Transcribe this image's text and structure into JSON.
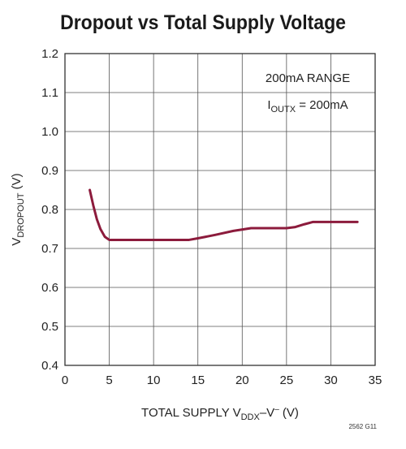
{
  "chart_data": {
    "type": "line",
    "title": "Dropout vs Total Supply Voltage",
    "xlabel": {
      "main": "TOTAL SUPPLY V",
      "sub": "DDX",
      "mid": "–V",
      "sup": "–",
      "end": " (V)"
    },
    "ylabel": {
      "main": "V",
      "sub": "DROPOUT",
      "end": " (V)"
    },
    "xlim": [
      0,
      35
    ],
    "ylim": [
      0.4,
      1.2
    ],
    "xticks": [
      0,
      5,
      10,
      15,
      20,
      25,
      30,
      35
    ],
    "yticks": [
      0.4,
      0.5,
      0.6,
      0.7,
      0.8,
      0.9,
      1.0,
      1.1,
      1.2
    ],
    "grid": true,
    "annotation": {
      "line1": "200mA RANGE",
      "line2_main": "I",
      "line2_sub": "OUTX",
      "line2_end": " = 200mA"
    },
    "figure_id": "2562 G11",
    "series": [
      {
        "color": "#8c1b3c",
        "x": [
          2.8,
          3.2,
          3.6,
          4.0,
          4.5,
          5.0,
          6,
          8,
          10,
          12,
          14,
          15,
          17,
          19,
          21,
          23,
          25,
          26,
          27,
          28,
          30,
          32,
          33
        ],
        "y": [
          0.85,
          0.81,
          0.775,
          0.75,
          0.73,
          0.722,
          0.722,
          0.722,
          0.722,
          0.722,
          0.722,
          0.726,
          0.735,
          0.745,
          0.752,
          0.752,
          0.752,
          0.755,
          0.762,
          0.768,
          0.768,
          0.768,
          0.768
        ]
      }
    ]
  }
}
